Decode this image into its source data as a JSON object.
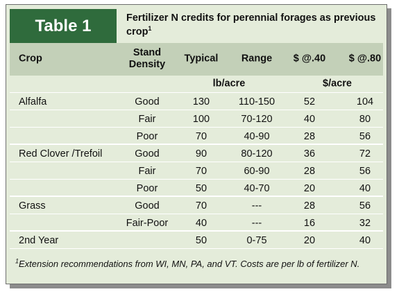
{
  "header": {
    "label": "Table 1",
    "title": "Fertilizer N credits for perennial forages as previous crop",
    "title_sup": "1"
  },
  "columns": [
    "Crop",
    "Stand Density",
    "Typical",
    "Range",
    "$ @.40",
    "$ @.80"
  ],
  "units": [
    "lb/acre",
    "$/acre"
  ],
  "rows": [
    [
      "Alfalfa",
      "Good",
      130,
      "110-150",
      52,
      104
    ],
    [
      null,
      "Fair",
      100,
      "70-120",
      40,
      80
    ],
    [
      null,
      "Poor",
      70,
      "40-90",
      28,
      56
    ],
    [
      "Red Clover /Trefoil",
      "Good",
      90,
      "80-120",
      36,
      72
    ],
    [
      null,
      "Fair",
      70,
      "60-90",
      28,
      56
    ],
    [
      null,
      "Poor",
      50,
      "40-70",
      20,
      40
    ],
    [
      "Grass",
      "Good",
      70,
      "---",
      28,
      56
    ],
    [
      null,
      "Fair-Poor",
      40,
      "---",
      16,
      32
    ],
    [
      "2nd Year",
      null,
      50,
      "0-75",
      20,
      40
    ]
  ],
  "footnote": {
    "sup": "1",
    "text": "Extension recommendations from WI, MN, PA, and VT. Costs are per lb of fertilizer N."
  }
}
